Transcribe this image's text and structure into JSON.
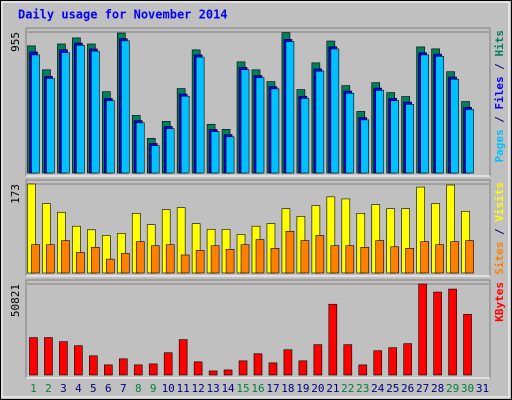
{
  "chart_data": [
    {
      "type": "bar",
      "title": "Daily usage for November 2014",
      "legend_separator": " / ",
      "ylim": [
        0,
        955
      ],
      "yticks": [
        955
      ],
      "series": [
        {
          "name": "Hits",
          "color": "#00805c",
          "values": [
            861,
            699,
            874,
            915,
            874,
            551,
            948,
            390,
            235,
            350,
            572,
            834,
            330,
            296,
            753,
            699,
            619,
            950,
            565,
            746,
            894,
            592,
            417,
            612,
            545,
            518,
            854,
            841,
            686,
            484,
            null
          ]
        },
        {
          "name": "Files",
          "color": "#0000ff",
          "values": [
            820,
            655,
            835,
            880,
            840,
            505,
            910,
            355,
            200,
            315,
            535,
            800,
            295,
            260,
            715,
            660,
            585,
            905,
            520,
            705,
            855,
            555,
            375,
            575,
            505,
            480,
            815,
            805,
            650,
            445,
            null
          ]
        },
        {
          "name": "Pages",
          "color": "#00c0ff",
          "values": [
            800,
            640,
            815,
            865,
            825,
            490,
            895,
            340,
            185,
            300,
            520,
            785,
            280,
            245,
            700,
            645,
            570,
            890,
            505,
            690,
            840,
            540,
            360,
            560,
            490,
            465,
            800,
            790,
            635,
            430,
            null
          ]
        }
      ]
    },
    {
      "type": "bar",
      "legend_separator": " / ",
      "ylim": [
        0,
        173
      ],
      "yticks": [
        173
      ],
      "series": [
        {
          "name": "Visits",
          "color": "#ffff00",
          "values": [
            173,
            135,
            118,
            91,
            84,
            73,
            77,
            116,
            94,
            123,
            127,
            96,
            85,
            85,
            75,
            91,
            96,
            125,
            110,
            131,
            148,
            144,
            116,
            133,
            125,
            125,
            167,
            135,
            171,
            120,
            null
          ]
        },
        {
          "name": "Sites",
          "color": "#ff8000",
          "values": [
            55,
            55,
            63,
            40,
            50,
            27,
            38,
            61,
            53,
            55,
            35,
            44,
            53,
            46,
            55,
            65,
            48,
            81,
            63,
            73,
            53,
            53,
            50,
            63,
            51,
            48,
            61,
            55,
            61,
            63,
            null
          ]
        }
      ]
    },
    {
      "type": "bar",
      "ylim": [
        0,
        50821
      ],
      "yticks": [
        50821
      ],
      "categories": [
        "1",
        "2",
        "3",
        "4",
        "5",
        "6",
        "7",
        "8",
        "9",
        "10",
        "11",
        "12",
        "13",
        "14",
        "15",
        "16",
        "17",
        "18",
        "19",
        "20",
        "21",
        "22",
        "23",
        "24",
        "25",
        "26",
        "27",
        "28",
        "29",
        "30",
        "31"
      ],
      "category_colors": [
        "#008040",
        "#008040",
        "#000080",
        "#000080",
        "#000080",
        "#000080",
        "#000080",
        "#008040",
        "#008040",
        "#000080",
        "#000080",
        "#000080",
        "#000080",
        "#000080",
        "#008040",
        "#008040",
        "#000080",
        "#000080",
        "#000080",
        "#000080",
        "#000080",
        "#008040",
        "#008040",
        "#000080",
        "#000080",
        "#000080",
        "#000080",
        "#000080",
        "#008040",
        "#008040",
        "#000080"
      ],
      "series": [
        {
          "name": "KBytes",
          "color": "#ff0000",
          "values": [
            20893,
            20893,
            18634,
            16375,
            10729,
            5647,
            9035,
            5647,
            6211,
            12423,
            19764,
            7341,
            2259,
            2823,
            7905,
            11858,
            6776,
            14117,
            7905,
            16940,
            39528,
            16940,
            5647,
            13552,
            15246,
            17505,
            50821,
            46304,
            47998,
            33880,
            null
          ]
        }
      ]
    }
  ]
}
